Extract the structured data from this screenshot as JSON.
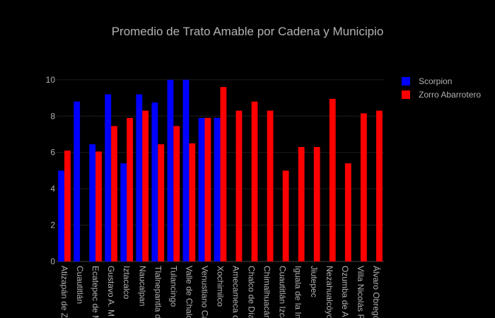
{
  "chart_data": {
    "type": "bar",
    "title": "Promedio de Trato Amable por Cadena y Municipio",
    "xlabel": "",
    "ylabel": "",
    "ylim": [
      0,
      10.5
    ],
    "yticks": [
      0,
      2,
      4,
      6,
      8,
      10
    ],
    "grid": true,
    "legend_position": "top-right",
    "categories": [
      "Atizapán de Z",
      "Cuautitlán",
      "Ecatepec de M",
      "Gustavo A. M",
      "Iztacalco",
      "Naucalpan",
      "Tlalnepantla d",
      "Tulancingo",
      "Valle de Chalc",
      "Venustiano Ca",
      "Xochimilco",
      "Amecameca d",
      "Chalco de Día",
      "Chimalhuacán",
      "Cuautitlán Izca",
      "Iguala de la In",
      "Jiutepec",
      "Nezahualcóyo",
      "Ozumba de A",
      "Villa Nicolás R",
      "Álvaro Obregó"
    ],
    "series": [
      {
        "name": "Scorpion",
        "color": "#0000ff",
        "values": [
          5.0,
          8.8,
          6.45,
          9.2,
          5.4,
          9.2,
          8.75,
          10.0,
          10.0,
          7.9,
          7.9,
          null,
          null,
          null,
          null,
          null,
          null,
          null,
          null,
          null,
          null
        ]
      },
      {
        "name": "Zorro Abarrotero",
        "color": "#ff0000",
        "values": [
          6.1,
          null,
          6.05,
          7.45,
          7.9,
          8.3,
          6.45,
          7.45,
          6.5,
          7.9,
          9.6,
          8.3,
          8.8,
          8.3,
          5.0,
          6.3,
          6.3,
          8.95,
          5.4,
          8.15,
          8.3
        ]
      }
    ]
  }
}
